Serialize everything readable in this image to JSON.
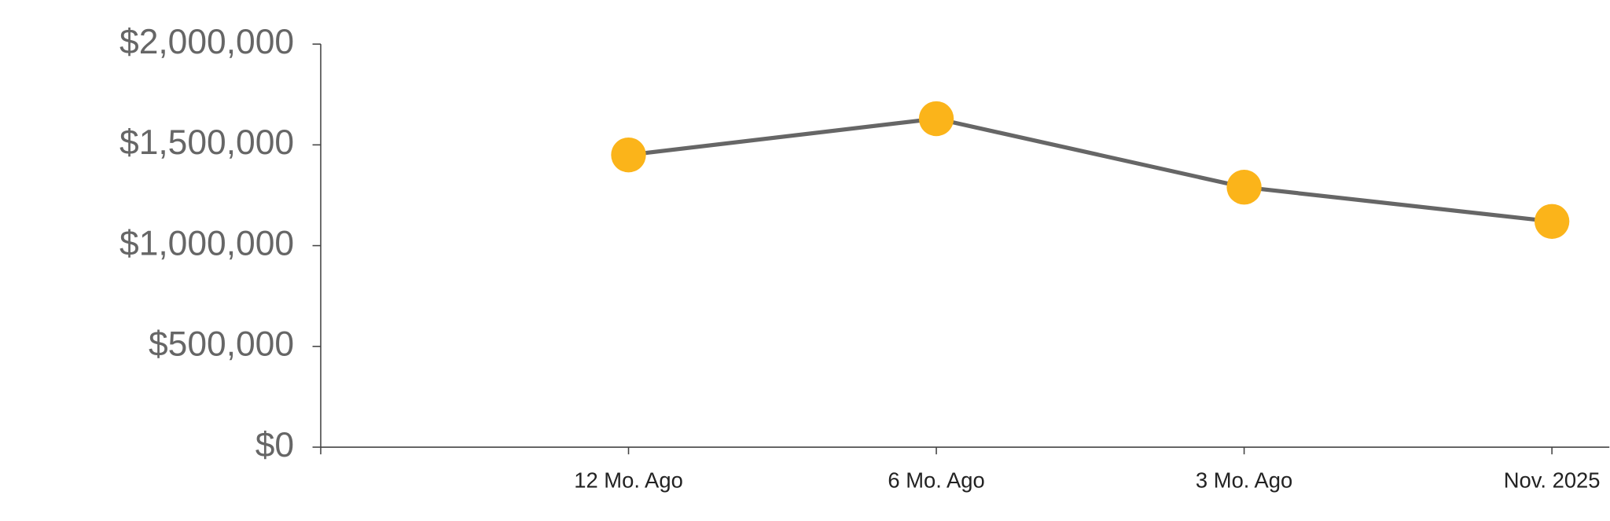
{
  "chart_data": {
    "type": "line",
    "categories": [
      null,
      "12 Mo. Ago",
      "6 Mo. Ago",
      "3 Mo. Ago",
      "Nov. 2025"
    ],
    "values": [
      null,
      1450000,
      1630000,
      1290000,
      1120000
    ],
    "line_color": "#666666",
    "marker_color": "#fbb41a",
    "ylim": [
      0,
      2000000
    ],
    "yticks": [
      {
        "value": 0,
        "label": "$0"
      },
      {
        "value": 500000,
        "label": "$500,000"
      },
      {
        "value": 1000000,
        "label": "$1,000,000"
      },
      {
        "value": 1500000,
        "label": "$1,500,000"
      },
      {
        "value": 2000000,
        "label": "$2,000,000"
      }
    ],
    "grid": false
  }
}
